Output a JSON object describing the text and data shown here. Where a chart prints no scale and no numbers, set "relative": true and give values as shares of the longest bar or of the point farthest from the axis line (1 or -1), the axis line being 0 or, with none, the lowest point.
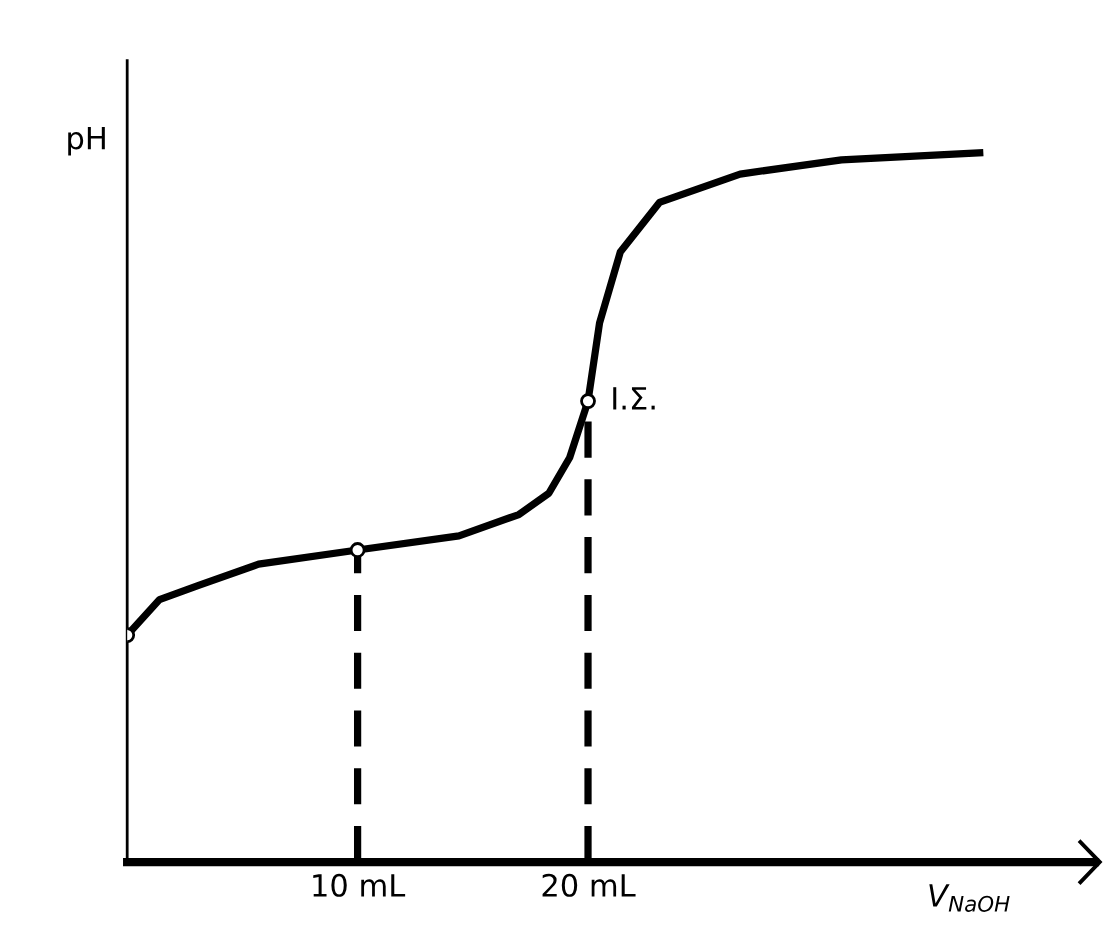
{
  "chart_data": {
    "type": "line",
    "relative": true,
    "xlabel": "V$_{NaOH}$",
    "ylabel": "pH",
    "xlim": [
      0,
      42
    ],
    "xticks": [
      {
        "value": 10,
        "label": "10 mL"
      },
      {
        "value": 20,
        "label": "20 mL"
      }
    ],
    "annotations": [
      {
        "text": "Ι.Σ.",
        "x": 20,
        "y": 0.65
      }
    ],
    "grid": false,
    "legend": false,
    "series": [
      {
        "color": "#000000",
        "line_style": "solid",
        "marker": "none",
        "x": [
          0,
          1.4,
          3.1,
          5.7,
          10,
          14.4,
          17,
          18.3,
          19.2,
          20,
          20.5,
          21.4,
          23.1,
          26.6,
          31,
          37
        ],
        "values": [
          0.32,
          0.37,
          0.39,
          0.42,
          0.44,
          0.46,
          0.49,
          0.52,
          0.57,
          0.65,
          0.76,
          0.86,
          0.93,
          0.97,
          0.99,
          1.0
        ]
      },
      {
        "type": "line",
        "color": "#000000",
        "line_style": "dashed",
        "marker": "none",
        "x": [
          10,
          10
        ],
        "values": [
          0,
          0.44
        ]
      },
      {
        "type": "line",
        "color": "#000000",
        "line_style": "dashed",
        "marker": "none",
        "x": [
          20,
          20
        ],
        "values": [
          0,
          0.65
        ]
      },
      {
        "type": "scatter",
        "color": "#000000",
        "marker": "circle",
        "x": [
          0,
          10,
          20
        ],
        "values": [
          0.32,
          0.44,
          0.65
        ]
      }
    ]
  }
}
